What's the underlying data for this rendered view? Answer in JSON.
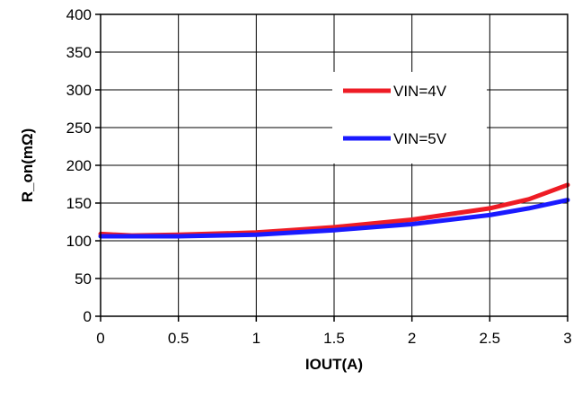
{
  "chart_data": {
    "type": "line",
    "title": "",
    "xlabel": "IOUT(A)",
    "ylabel": "R_on(mΩ)",
    "xlim": [
      0,
      3
    ],
    "ylim": [
      0,
      400
    ],
    "xticks": [
      0,
      0.5,
      1,
      1.5,
      2,
      2.5,
      3
    ],
    "xtick_labels": [
      "0",
      "0.5",
      "1",
      "1.5",
      "2",
      "2.5",
      "3"
    ],
    "yticks": [
      0,
      50,
      100,
      150,
      200,
      250,
      300,
      350,
      400
    ],
    "ytick_labels": [
      "0",
      "50",
      "100",
      "150",
      "200",
      "250",
      "300",
      "350",
      "400"
    ],
    "grid": true,
    "legend_position": "right",
    "series": [
      {
        "name": "VIN=4V",
        "color": "#ee1c25",
        "x": [
          0,
          0.1,
          0.2,
          0.5,
          1.0,
          1.5,
          2.0,
          2.5,
          2.75,
          3.0
        ],
        "y": [
          109,
          108,
          107,
          108,
          111,
          118,
          128,
          143,
          155,
          174
        ]
      },
      {
        "name": "VIN=5V",
        "color": "#1a1aff",
        "x": [
          0,
          0.2,
          0.5,
          1.0,
          1.5,
          2.0,
          2.5,
          2.75,
          3.0
        ],
        "y": [
          106,
          106,
          106,
          108,
          114,
          122,
          134,
          143,
          154
        ]
      }
    ]
  }
}
